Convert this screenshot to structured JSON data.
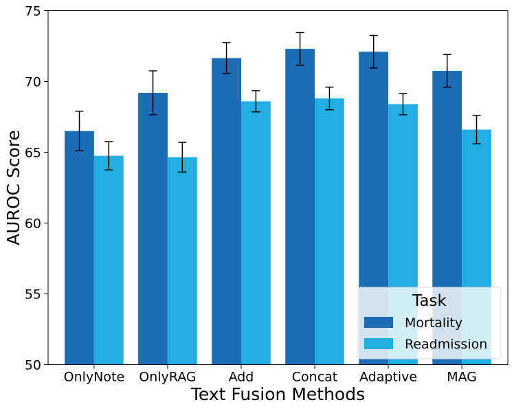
{
  "chart_data": {
    "type": "bar",
    "title": "",
    "xlabel": "Text Fusion Methods",
    "ylabel": "AUROC Score",
    "ylim": [
      50,
      75
    ],
    "yticks": [
      50,
      55,
      60,
      65,
      70,
      75
    ],
    "grid": false,
    "categories": [
      "OnlyNote",
      "OnlyRAG",
      "Add",
      "Concat",
      "Adaptive",
      "MAG"
    ],
    "series": [
      {
        "name": "Mortality",
        "color": "#1c6db5",
        "values": [
          66.5,
          69.2,
          71.65,
          72.3,
          72.1,
          70.75
        ],
        "errors": [
          1.4,
          1.55,
          1.1,
          1.15,
          1.15,
          1.15
        ]
      },
      {
        "name": "Readmission",
        "color": "#22aee0",
        "values": [
          64.75,
          64.65,
          68.6,
          68.8,
          68.4,
          66.6
        ],
        "errors": [
          1.0,
          1.05,
          0.75,
          0.8,
          0.75,
          1.0
        ]
      }
    ],
    "legend": {
      "title": "Task",
      "position": "bottom-right",
      "entries": [
        "Mortality",
        "Readmission"
      ]
    }
  }
}
